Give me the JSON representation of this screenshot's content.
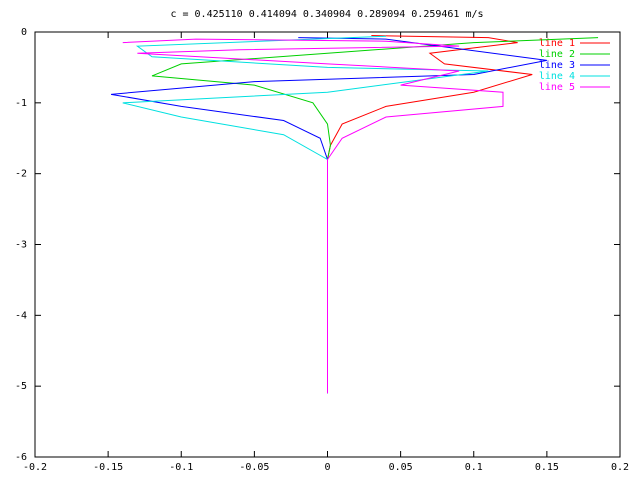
{
  "chart_data": {
    "type": "line",
    "title": "c = 0.425110 0.414094 0.340904 0.289094 0.259461 m/s",
    "xlim": [
      -0.2,
      0.2
    ],
    "xticks": [
      -0.2,
      -0.15,
      -0.1,
      -0.05,
      0,
      0.05,
      0.1,
      0.15,
      0.2
    ],
    "ylim": [
      -6,
      0
    ],
    "yticks": [
      0,
      -1,
      -2,
      -3,
      -4,
      -5,
      -6
    ],
    "grid": false,
    "legend": "top-right",
    "series": [
      {
        "name": "line 1",
        "color": "#ff0000",
        "x": [
          0.03,
          0.11,
          0.13,
          0.07,
          0.08,
          0.14,
          0.1,
          0.04,
          0.01,
          0.002,
          0,
          0
        ],
        "values": [
          -0.05,
          -0.08,
          -0.15,
          -0.3,
          -0.45,
          -0.6,
          -0.85,
          -1.05,
          -1.3,
          -1.6,
          -1.8,
          -5.1
        ]
      },
      {
        "name": "line 2",
        "color": "#00d000",
        "x": [
          0.185,
          0.1,
          0,
          -0.1,
          -0.12,
          -0.05,
          -0.01,
          0,
          0.002,
          0,
          0
        ],
        "values": [
          -0.08,
          -0.15,
          -0.3,
          -0.45,
          -0.62,
          -0.75,
          -1.0,
          -1.3,
          -1.6,
          -1.8,
          -5.1
        ]
      },
      {
        "name": "line 3",
        "color": "#0000ff",
        "x": [
          -0.02,
          0.04,
          0.15,
          0.1,
          -0.05,
          -0.148,
          -0.1,
          -0.03,
          -0.005,
          0,
          0
        ],
        "values": [
          -0.08,
          -0.1,
          -0.4,
          -0.6,
          -0.7,
          -0.88,
          -1.05,
          -1.25,
          -1.5,
          -1.8,
          -5.1
        ]
      },
      {
        "name": "line 4",
        "color": "#00e0e0",
        "x": [
          0.04,
          -0.13,
          -0.12,
          0,
          0.11,
          0,
          -0.14,
          -0.1,
          -0.03,
          0,
          0
        ],
        "values": [
          -0.06,
          -0.2,
          -0.35,
          -0.5,
          -0.55,
          -0.85,
          -1.0,
          -1.2,
          -1.45,
          -1.8,
          -5.1
        ]
      },
      {
        "name": "line 5",
        "color": "#ff00ff",
        "x": [
          -0.14,
          -0.09,
          0.04,
          0.09,
          -0.06,
          -0.13,
          0,
          0.09,
          0.05,
          0.12,
          0.12,
          0.04,
          0.01,
          0,
          0
        ],
        "values": [
          -0.15,
          -0.1,
          -0.13,
          -0.2,
          -0.25,
          -0.3,
          -0.45,
          -0.55,
          -0.75,
          -0.85,
          -1.05,
          -1.2,
          -1.5,
          -1.8,
          -5.1
        ]
      }
    ]
  }
}
